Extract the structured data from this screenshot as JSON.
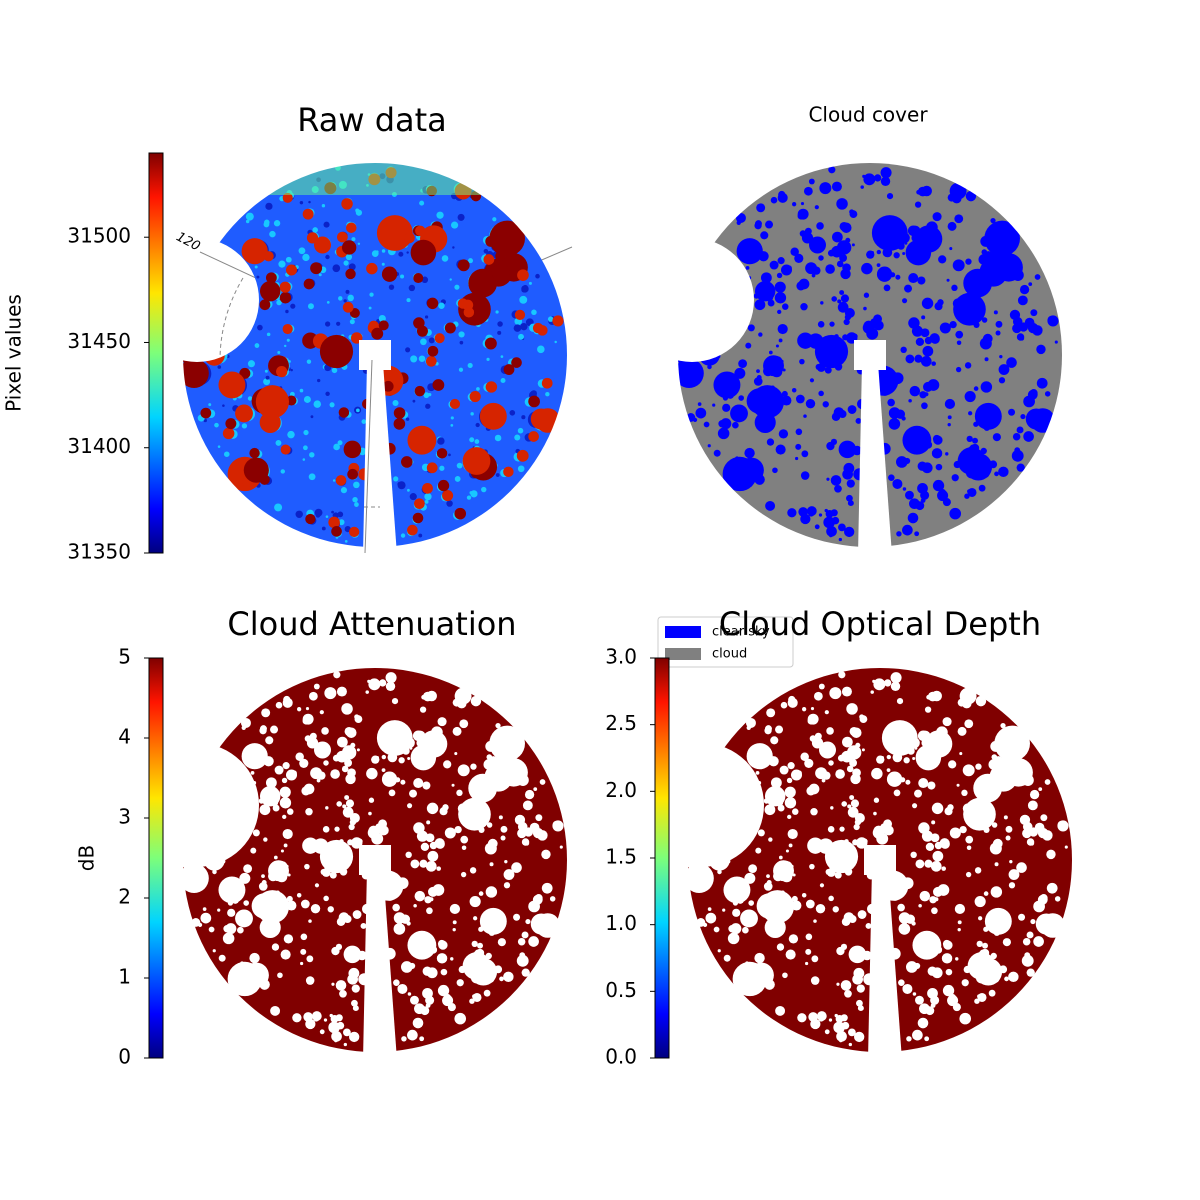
{
  "chart_data": [
    {
      "type": "image",
      "title": "Raw data",
      "colorbar": {
        "label": "Pixel values",
        "lim": [
          31350,
          31540
        ],
        "ticks": [
          31350,
          31400,
          31450,
          31500
        ],
        "colormap": "jet"
      },
      "annotations": [
        "120"
      ]
    },
    {
      "type": "image",
      "title": "Cloud cover",
      "series": [
        {
          "name": "clear sky",
          "color": "#0000ff"
        },
        {
          "name": "cloud",
          "color": "#808080"
        }
      ]
    },
    {
      "type": "image",
      "title": "Cloud Attenuation",
      "colorbar": {
        "label": "dB",
        "lim": [
          0,
          5
        ],
        "ticks": [
          0,
          1,
          2,
          3,
          4,
          5
        ],
        "colormap": "jet"
      }
    },
    {
      "type": "image",
      "title": "Cloud Optical Depth",
      "colorbar": {
        "lim": [
          0,
          3
        ],
        "ticks": [
          {
            "value": 0,
            "label": "0.0"
          },
          {
            "value": 0.5,
            "label": "0.5"
          },
          {
            "value": 1,
            "label": "1.0"
          },
          {
            "value": 1.5,
            "label": "1.5"
          },
          {
            "value": 2,
            "label": "2.0"
          },
          {
            "value": 2.5,
            "label": "2.5"
          },
          {
            "value": 3,
            "label": "3.0"
          }
        ],
        "colormap": "jet"
      }
    }
  ]
}
